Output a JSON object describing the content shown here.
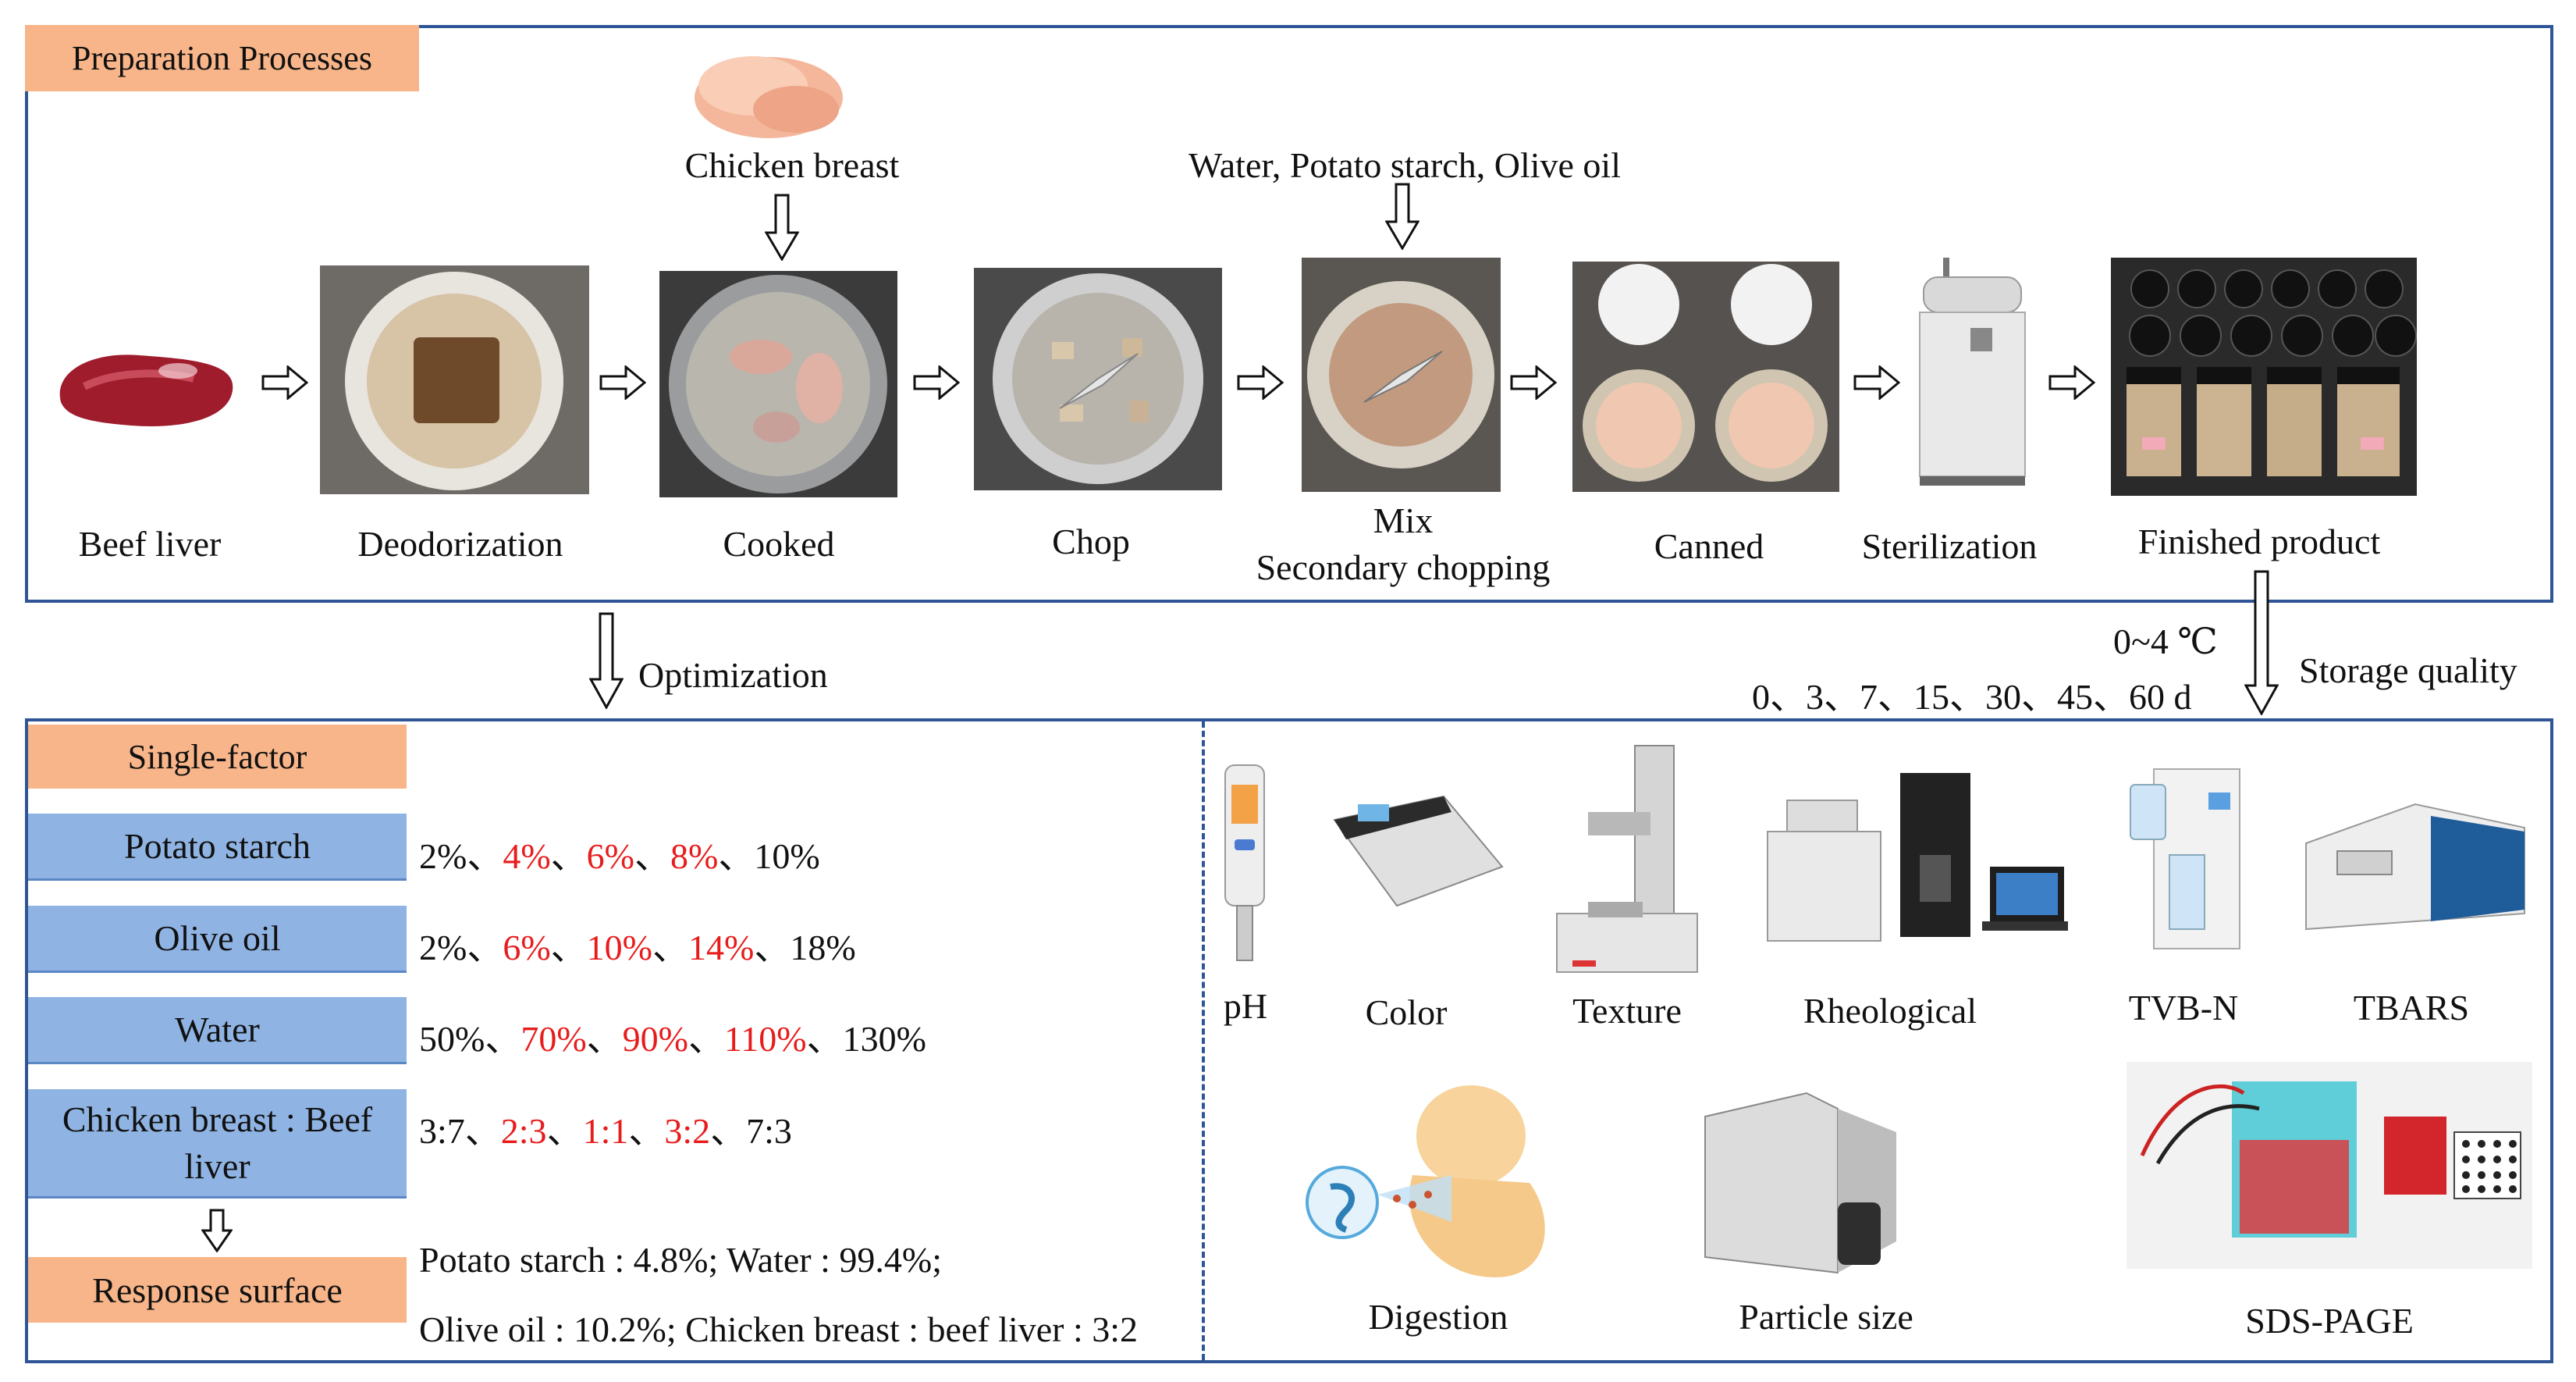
{
  "top": {
    "tag": "Preparation Processes",
    "chicken_breast_input": "Chicken breast",
    "mix_inputs": "Water, Potato starch, Olive oil",
    "steps": [
      "Beef liver",
      "Deodorization",
      "Cooked",
      "Chop",
      "Mix",
      "Secondary chopping",
      "Canned",
      "Sterilization",
      "Finished product"
    ]
  },
  "middle": {
    "optimization": "Optimization",
    "storage_temp": "0~4 ℃",
    "storage_days": "0、3、7、15、30、45、60 d",
    "storage_quality": "Storage quality"
  },
  "left": {
    "single_factor": "Single-factor",
    "factors": [
      {
        "name": "Potato starch",
        "levels": [
          "2%",
          "4%",
          "6%",
          "8%",
          "10%"
        ]
      },
      {
        "name": "Olive oil",
        "levels": [
          "2%",
          "6%",
          "10%",
          "14%",
          "18%"
        ]
      },
      {
        "name": "Water",
        "levels": [
          "50%",
          "70%",
          "90%",
          "110%",
          "130%"
        ]
      },
      {
        "name": "Chicken breast : Beef liver",
        "levels": [
          "3:7",
          "2:3",
          "1:1",
          "3:2",
          "7:3"
        ]
      }
    ],
    "separator": "、",
    "response_surface": "Response surface",
    "result_line1": "Potato starch : 4.8%; Water : 99.4%;",
    "result_line2": "Olive oil : 10.2%; Chicken breast : beef liver : 3:2"
  },
  "right": {
    "row1": [
      "pH",
      "Color",
      "Texture",
      "Rheological",
      "TVB-N",
      "TBARS"
    ],
    "row2": [
      "Digestion",
      "Particle size",
      "SDS-PAGE"
    ]
  },
  "colors": {
    "border": "#2f5597",
    "orange_tag": "#f8b589",
    "blue_box": "#8fb4e3",
    "highlight": "#e81c1c"
  }
}
